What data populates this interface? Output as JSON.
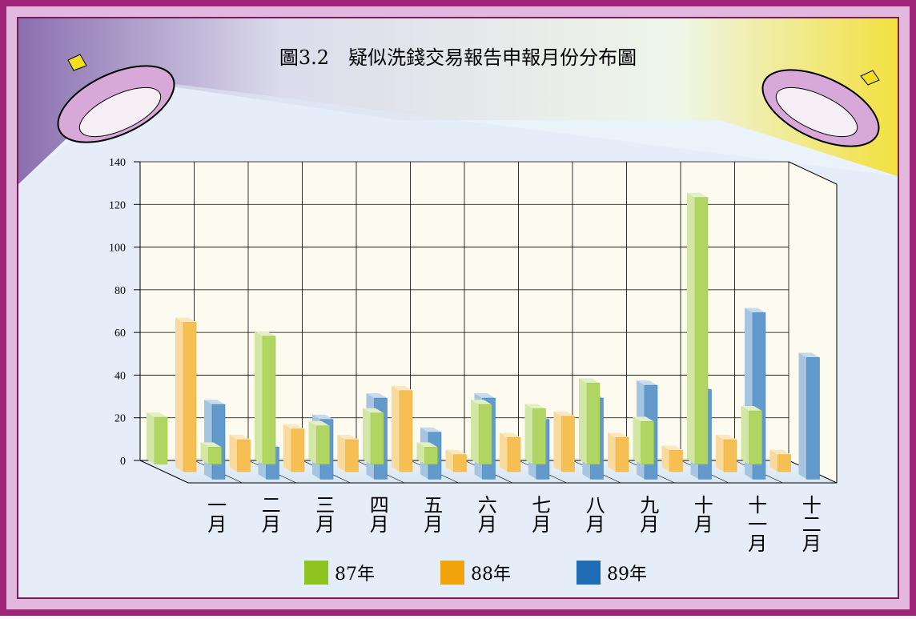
{
  "chart_data": {
    "type": "bar3d",
    "title": "圖3.2　疑似洗錢交易報告申報月份分布圖",
    "categories": [
      "一月",
      "二月",
      "三月",
      "四月",
      "五月",
      "六月",
      "七月",
      "八月",
      "九月",
      "十月",
      "十一月",
      "十二月"
    ],
    "series": [
      {
        "name": "87年",
        "color": "#8fc31f",
        "values": [
          22,
          8,
          60,
          18,
          24,
          8,
          28,
          26,
          38,
          20,
          125,
          25
        ]
      },
      {
        "name": "88年",
        "color": "#f0a30a",
        "values": [
          70,
          15,
          20,
          15,
          38,
          8,
          16,
          26,
          16,
          10,
          15,
          8
        ]
      },
      {
        "name": "89年",
        "color": "#1f6eb5",
        "values": [
          35,
          15,
          28,
          38,
          22,
          38,
          28,
          38,
          44,
          42,
          78,
          57
        ]
      }
    ],
    "ylim": [
      0,
      140
    ],
    "yticks": [
      0,
      20,
      40,
      60,
      80,
      100,
      120,
      140
    ],
    "grid": true
  }
}
